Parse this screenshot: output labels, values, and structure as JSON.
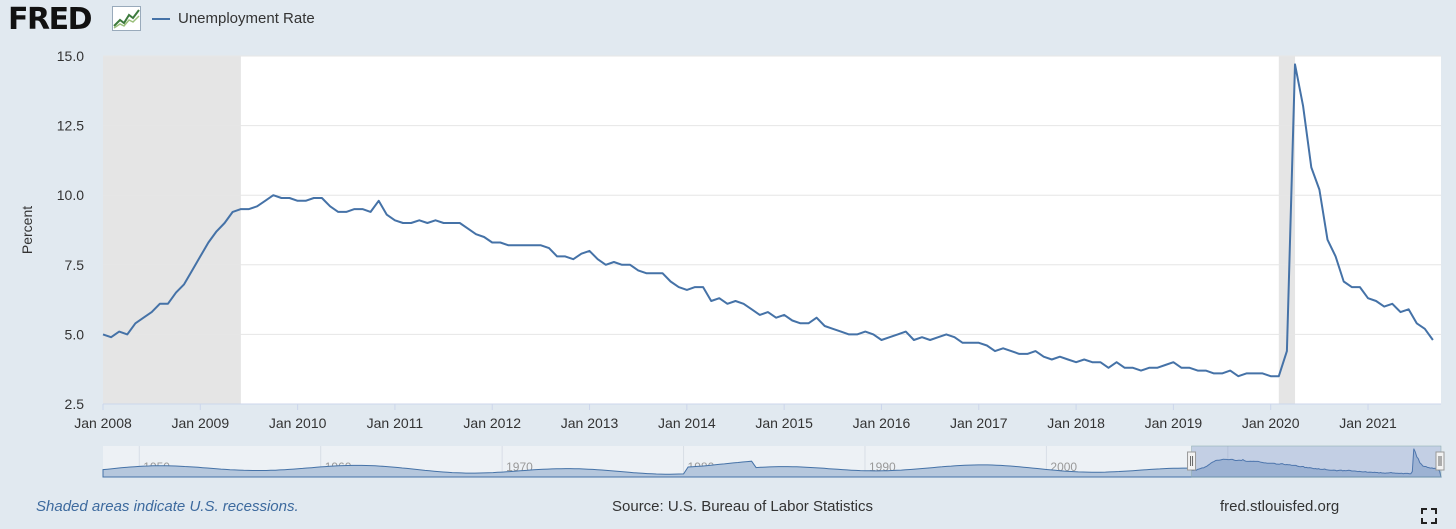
{
  "header": {
    "logo_text": "FRED",
    "legend_label": "Unemployment Rate",
    "logo_icon": "fred-chart-logo-icon",
    "series_color": "#4572a7"
  },
  "footer": {
    "note": "Shaded areas indicate U.S. recessions.",
    "source": "Source: U.S. Bureau of Labor Statistics",
    "site": "fred.stlouisfed.org",
    "fullscreen_icon": "fullscreen-icon"
  },
  "navigator": {
    "labels": [
      "1950",
      "1960",
      "1970",
      "1980",
      "1990",
      "2000",
      "2010"
    ],
    "range_start": 2008.0,
    "range_end": 2021.75,
    "full_start": 1948.0,
    "full_end": 2021.75
  },
  "chart_data": {
    "type": "line",
    "ylabel": "Percent",
    "xlabel": "",
    "ylim": [
      2.5,
      15.0
    ],
    "yticks": [
      "2.5",
      "5.0",
      "7.5",
      "10.0",
      "12.5",
      "15.0"
    ],
    "xticks": [
      "Jan 2008",
      "Jan 2009",
      "Jan 2010",
      "Jan 2011",
      "Jan 2012",
      "Jan 2013",
      "Jan 2014",
      "Jan 2015",
      "Jan 2016",
      "Jan 2017",
      "Jan 2018",
      "Jan 2019",
      "Jan 2020",
      "Jan 2021"
    ],
    "x_start": "2008-01",
    "x_end": "2021-10",
    "grid": true,
    "recessions": [
      {
        "start": "2008-01",
        "end": "2009-06"
      },
      {
        "start": "2020-02",
        "end": "2020-04"
      }
    ],
    "series": [
      {
        "name": "Unemployment Rate",
        "start": "2008-01",
        "values": [
          5.0,
          4.9,
          5.1,
          5.0,
          5.4,
          5.6,
          5.8,
          6.1,
          6.1,
          6.5,
          6.8,
          7.3,
          7.8,
          8.3,
          8.7,
          9.0,
          9.4,
          9.5,
          9.5,
          9.6,
          9.8,
          10.0,
          9.9,
          9.9,
          9.8,
          9.8,
          9.9,
          9.9,
          9.6,
          9.4,
          9.4,
          9.5,
          9.5,
          9.4,
          9.8,
          9.3,
          9.1,
          9.0,
          9.0,
          9.1,
          9.0,
          9.1,
          9.0,
          9.0,
          9.0,
          8.8,
          8.6,
          8.5,
          8.3,
          8.3,
          8.2,
          8.2,
          8.2,
          8.2,
          8.2,
          8.1,
          7.8,
          7.8,
          7.7,
          7.9,
          8.0,
          7.7,
          7.5,
          7.6,
          7.5,
          7.5,
          7.3,
          7.2,
          7.2,
          7.2,
          6.9,
          6.7,
          6.6,
          6.7,
          6.7,
          6.2,
          6.3,
          6.1,
          6.2,
          6.1,
          5.9,
          5.7,
          5.8,
          5.6,
          5.7,
          5.5,
          5.4,
          5.4,
          5.6,
          5.3,
          5.2,
          5.1,
          5.0,
          5.0,
          5.1,
          5.0,
          4.8,
          4.9,
          5.0,
          5.1,
          4.8,
          4.9,
          4.8,
          4.9,
          5.0,
          4.9,
          4.7,
          4.7,
          4.7,
          4.6,
          4.4,
          4.5,
          4.4,
          4.3,
          4.3,
          4.4,
          4.2,
          4.1,
          4.2,
          4.1,
          4.0,
          4.1,
          4.0,
          4.0,
          3.8,
          4.0,
          3.8,
          3.8,
          3.7,
          3.8,
          3.8,
          3.9,
          4.0,
          3.8,
          3.8,
          3.7,
          3.7,
          3.6,
          3.6,
          3.7,
          3.5,
          3.6,
          3.6,
          3.6,
          3.5,
          3.5,
          4.4,
          14.7,
          13.2,
          11.0,
          10.2,
          8.4,
          7.8,
          6.9,
          6.7,
          6.7,
          6.3,
          6.2,
          6.0,
          6.1,
          5.8,
          5.9,
          5.4,
          5.2,
          4.8
        ]
      }
    ]
  }
}
